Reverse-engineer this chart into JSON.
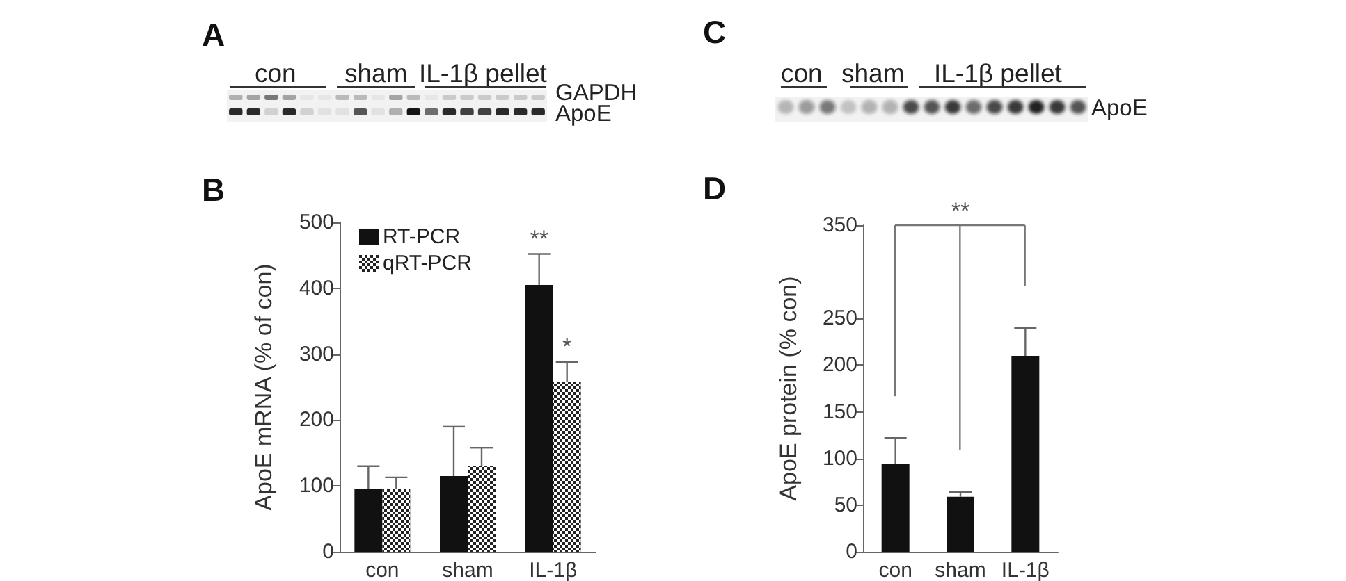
{
  "chart_data": [
    {
      "type": "other",
      "title": "A",
      "annotations": [
        "con",
        "sham",
        "IL-1β pellet",
        "GAPDH",
        "ApoE"
      ]
    },
    {
      "type": "other",
      "title": "C",
      "annotations": [
        "con",
        "sham",
        "IL-1β pellet",
        "ApoE"
      ]
    },
    {
      "type": "bar",
      "title": "B",
      "ylabel": "ApoE mRNA (% of con)",
      "categories": [
        "con",
        "sham",
        "IL-1β"
      ],
      "series": [
        {
          "name": "RT-PCR",
          "color": "#111111",
          "values": [
            95,
            115,
            405
          ],
          "errors": [
            [
              95,
              130
            ],
            [
              115,
              190
            ],
            [
              405,
              452
            ]
          ]
        },
        {
          "name": "qRT-PCR",
          "color": "#222222",
          "values": [
            96,
            130,
            258
          ],
          "errors": [
            [
              96,
              113
            ],
            [
              130,
              158
            ],
            [
              258,
              288
            ]
          ]
        }
      ],
      "ylim": [
        0,
        500
      ],
      "yticks": [
        0,
        100,
        200,
        300,
        400,
        500
      ],
      "legend": "top left",
      "annotations": [
        "**",
        "*"
      ]
    },
    {
      "type": "bar",
      "title": "D",
      "ylabel": "ApoE protein (% con)",
      "categories": [
        "con",
        "sham",
        "IL-1β"
      ],
      "values": [
        94,
        59,
        210
      ],
      "color": "#111111",
      "errors": [
        [
          94,
          122
        ],
        [
          59,
          64
        ],
        [
          210,
          240
        ]
      ],
      "ylim": [
        0,
        350
      ],
      "yticks": [
        0,
        50,
        100,
        150,
        200,
        250,
        350
      ],
      "annotations": [
        "**"
      ]
    }
  ]
}
